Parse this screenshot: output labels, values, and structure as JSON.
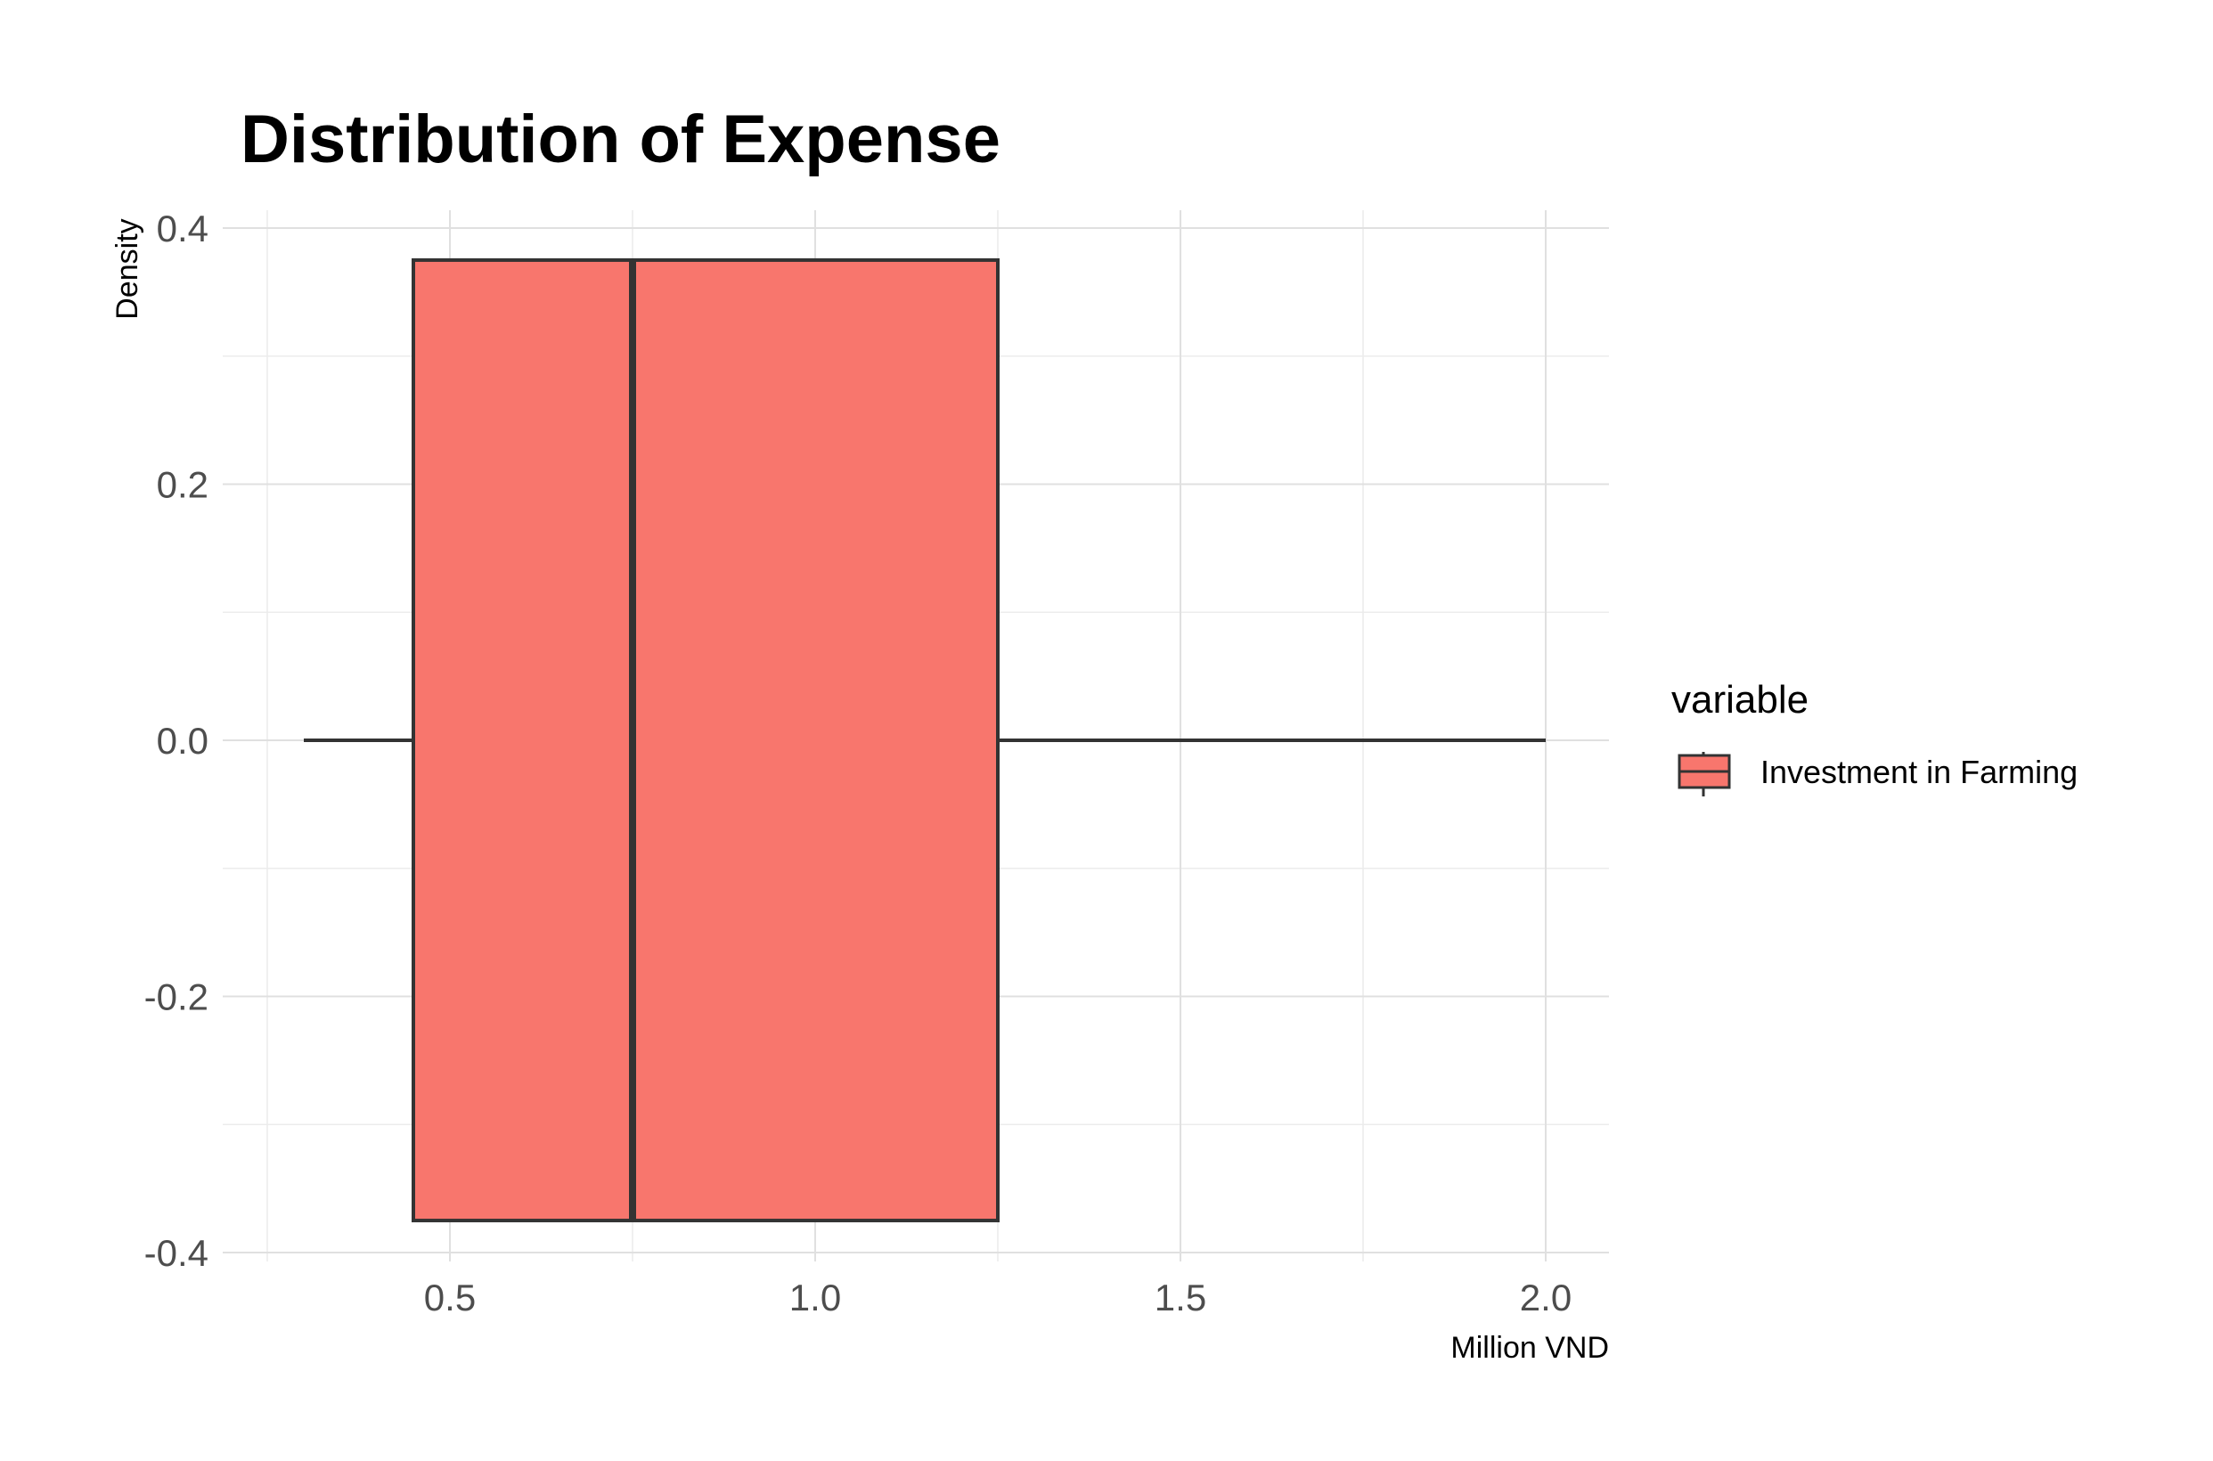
{
  "chart_data": {
    "type": "boxplot",
    "title": "Distribution of Expense",
    "xlabel": "Million VND",
    "ylabel": "Density",
    "xlim": [
      0.25,
      2.08
    ],
    "ylim": [
      -0.42,
      0.42
    ],
    "x_ticks": [
      {
        "value": 0.5,
        "label": "0.5"
      },
      {
        "value": 1.0,
        "label": "1.0"
      },
      {
        "value": 1.5,
        "label": "1.5"
      },
      {
        "value": 2.0,
        "label": "2.0"
      }
    ],
    "y_ticks": [
      {
        "value": 0.4,
        "label": "0.4"
      },
      {
        "value": 0.2,
        "label": "0.2"
      },
      {
        "value": 0.0,
        "label": "0.0"
      },
      {
        "value": -0.2,
        "label": "-0.2"
      },
      {
        "value": -0.4,
        "label": "-0.4"
      }
    ],
    "grid": true,
    "legend": {
      "title": "variable",
      "placement": "right",
      "entries": [
        {
          "label": "Investment in Farming",
          "color": "#F8766D"
        }
      ]
    },
    "series": [
      {
        "name": "Investment in Farming",
        "color": "#F8766D",
        "min": 0.3,
        "q1": 0.45,
        "median": 0.75,
        "q3": 1.25,
        "max": 2.0,
        "y_center": 0.0,
        "box_half_height": 0.375
      }
    ]
  }
}
